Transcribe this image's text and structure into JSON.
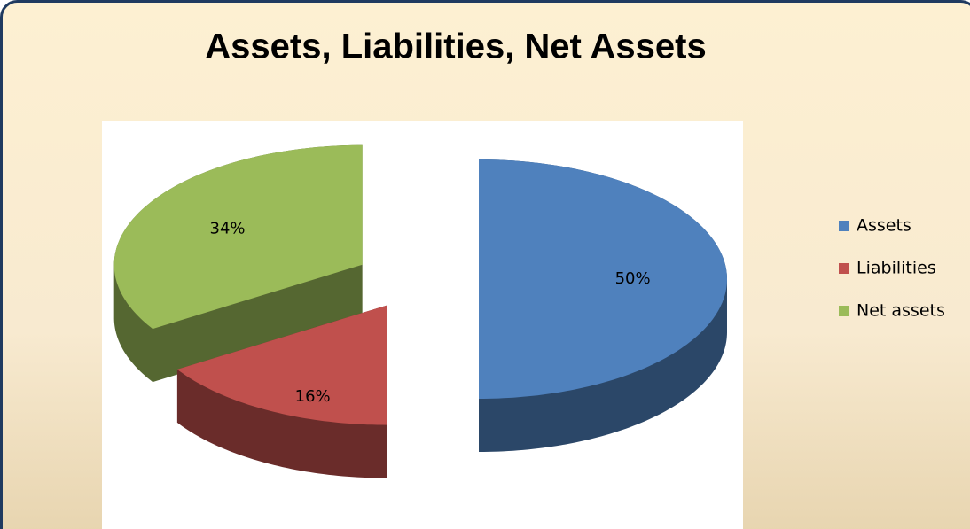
{
  "chart_data": {
    "type": "pie",
    "title": "Assets, Liabilities, Net Assets",
    "categories": [
      "Assets",
      "Liabilities",
      "Net assets"
    ],
    "values": [
      50,
      16,
      34
    ],
    "value_labels": [
      "50%",
      "16%",
      "34%"
    ],
    "colors": [
      "#4f81bd",
      "#c0504d",
      "#9bbb59"
    ],
    "legend": "right"
  }
}
